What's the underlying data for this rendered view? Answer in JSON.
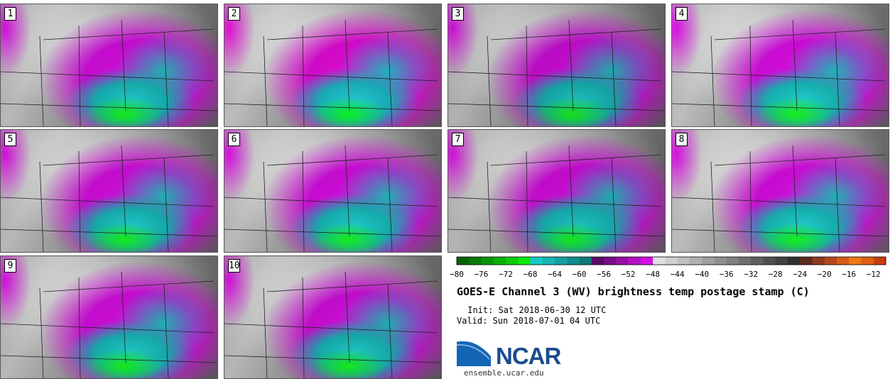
{
  "panels": [
    "1",
    "2",
    "3",
    "4",
    "5",
    "6",
    "7",
    "8",
    "9",
    "10"
  ],
  "chart_data": {
    "type": "heatmap",
    "title": "GOES-E Channel 3 (WV) brightness temp postage stamp (C)",
    "variable": "GOES-E Channel 3 (WV) brightness temp",
    "units": "C",
    "members": [
      1,
      2,
      3,
      4,
      5,
      6,
      7,
      8,
      9,
      10
    ],
    "colorbar": {
      "range": [
        -80,
        -10
      ],
      "tick_labels": [
        "−80",
        "−76",
        "−72",
        "−68",
        "−64",
        "−60",
        "−56",
        "−52",
        "−48",
        "−44",
        "−40",
        "−36",
        "−32",
        "−28",
        "−24",
        "−20",
        "−16",
        "−12"
      ],
      "tick_values": [
        -80,
        -76,
        -72,
        -68,
        -64,
        -60,
        -56,
        -52,
        -48,
        -44,
        -40,
        -36,
        -32,
        -28,
        -24,
        -20,
        -16,
        -12
      ],
      "bins": [
        -80,
        -78,
        -76,
        -74,
        -72,
        -70,
        -68,
        -66,
        -64,
        -62,
        -60,
        -58,
        -56,
        -54,
        -52,
        -50,
        -48,
        -46,
        -44,
        -42,
        -40,
        -38,
        -36,
        -34,
        -32,
        -30,
        -28,
        -26,
        -24,
        -22,
        -20,
        -18,
        -16,
        -14,
        -12,
        -10
      ],
      "colors": [
        "#056005",
        "#067a06",
        "#079407",
        "#08b008",
        "#0acc0a",
        "#0ce80c",
        "#18c8c8",
        "#16b4b4",
        "#14a0a0",
        "#128c8c",
        "#107878",
        "#5a0a64",
        "#780c84",
        "#960ea4",
        "#b410c4",
        "#d212e2",
        "#e0e0e0",
        "#d0d0d0",
        "#c0c0c0",
        "#b0b0b0",
        "#a0a0a0",
        "#909090",
        "#808080",
        "#707070",
        "#606060",
        "#505050",
        "#404040",
        "#303030",
        "#5a2a1a",
        "#8a3a1c",
        "#b4481c",
        "#d85a18",
        "#f07814",
        "#e06010",
        "#c83c0c"
      ]
    }
  },
  "init": " Init: Sat 2018-06-30 12 UTC",
  "valid": "Valid: Sun 2018-07-01 04 UTC",
  "logo": {
    "text": "NCAR",
    "url": "ensemble.ucar.edu",
    "color": "#1b4c8c"
  }
}
